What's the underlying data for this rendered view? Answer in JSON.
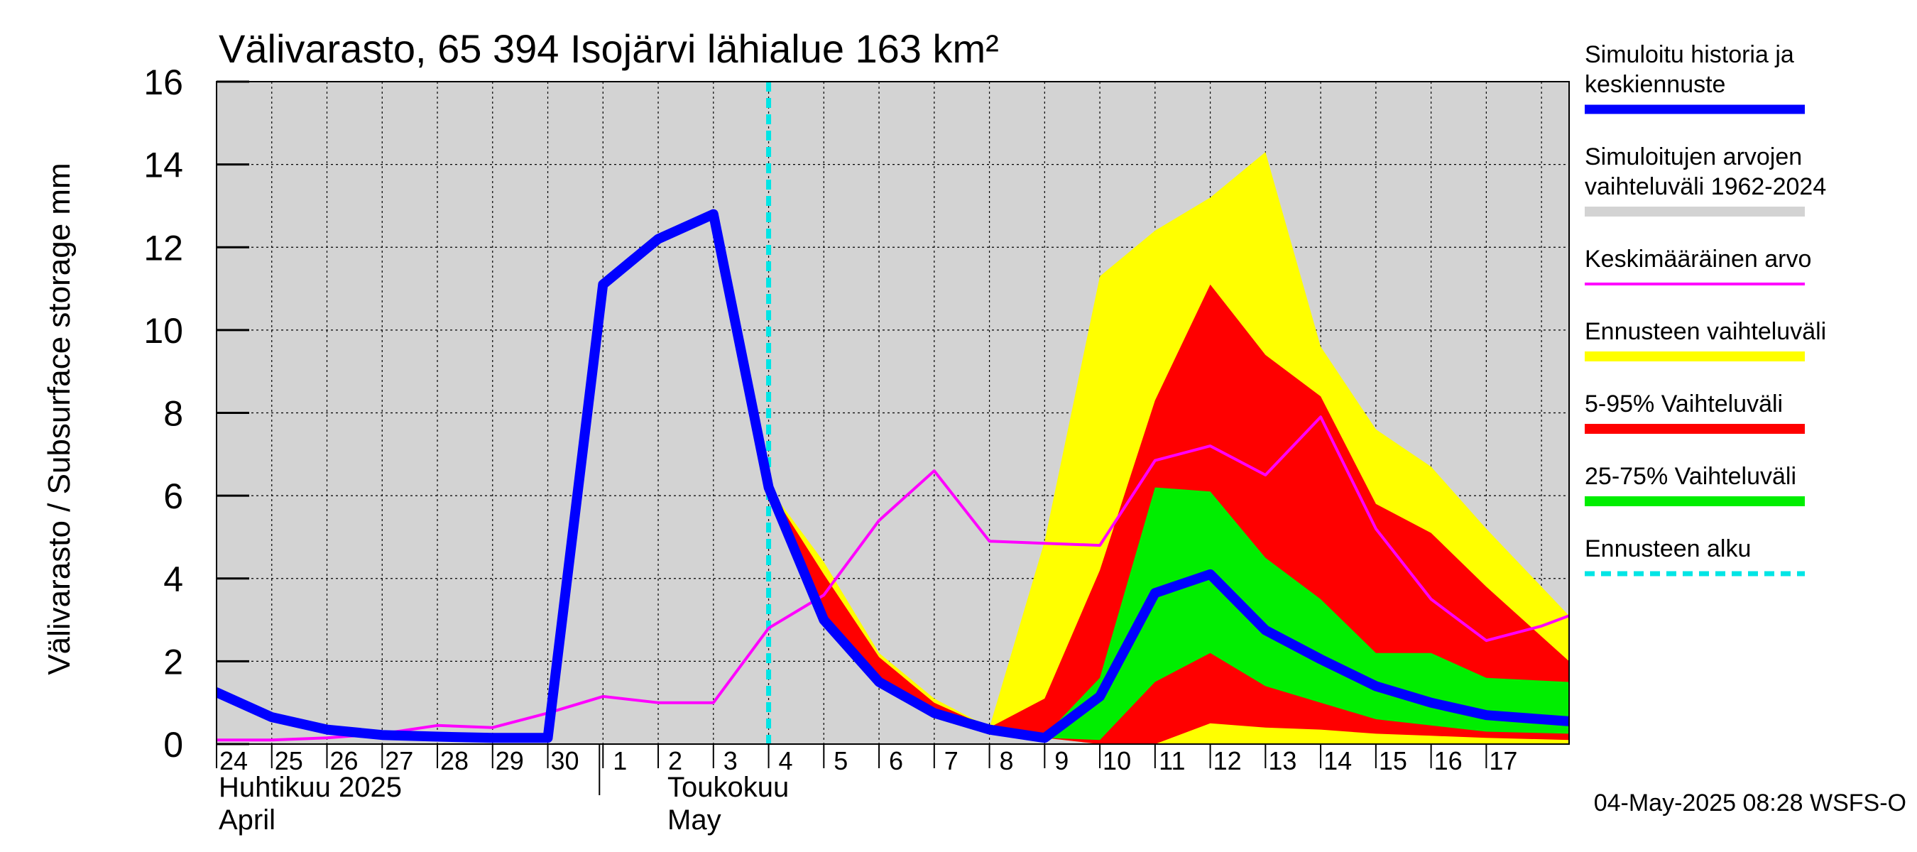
{
  "chart_data": {
    "type": "area",
    "title": "Välivarasto, 65 394 Isojärvi lähialue 163 km²",
    "ylabel": "Välivarasto / Subsurface storage  mm",
    "ylim": [
      0,
      16
    ],
    "yticks": [
      "0",
      "2",
      "4",
      "6",
      "8",
      "10",
      "12",
      "14",
      "16"
    ],
    "xlim": [
      0,
      24.5
    ],
    "x_tick_labels": [
      "24",
      "25",
      "26",
      "27",
      "28",
      "29",
      "30",
      "1",
      "2",
      "3",
      "4",
      "5",
      "6",
      "7",
      "8",
      "9",
      "10",
      "11",
      "12",
      "13",
      "14",
      "15",
      "16",
      "17"
    ],
    "month_labels": {
      "april_fi": "Huhtikuu  2025",
      "april_en": "April",
      "may_fi": "Toukokuu",
      "may_en": "May"
    },
    "forecast_start_x": 10,
    "series": [
      {
        "name": "Simuloitujen arvojen vaihteluväli 1962-2024",
        "kind": "band",
        "color": "#d3d3d3",
        "x": [
          0,
          24.5
        ],
        "lower": [
          0,
          0
        ],
        "upper": [
          16,
          16
        ]
      },
      {
        "name": "Ennusteen vaihteluväli",
        "kind": "band",
        "color": "#ffff00",
        "x": [
          10,
          11,
          12,
          13,
          14,
          15,
          16,
          17,
          18,
          19,
          20,
          21,
          22,
          23,
          24.5
        ],
        "lower": [
          6.2,
          3.0,
          1.5,
          0.7,
          0.35,
          0.15,
          0.0,
          0.0,
          0.0,
          0.0,
          0.0,
          0.0,
          0.0,
          0.0,
          0.0
        ],
        "upper": [
          6.2,
          4.4,
          2.2,
          1.1,
          0.4,
          4.9,
          11.3,
          12.4,
          13.2,
          14.3,
          9.6,
          7.6,
          6.7,
          5.2,
          3.1
        ]
      },
      {
        "name": "5-95% Vaihteluväli",
        "kind": "band",
        "color": "#ff0000",
        "x": [
          10,
          11,
          12,
          13,
          14,
          15,
          16,
          17,
          18,
          19,
          20,
          21,
          22,
          23,
          24.5
        ],
        "lower": [
          6.2,
          3.0,
          1.5,
          0.7,
          0.35,
          0.15,
          0.0,
          0.0,
          0.5,
          0.4,
          0.35,
          0.25,
          0.2,
          0.15,
          0.1
        ],
        "upper": [
          6.2,
          4.1,
          2.1,
          1.0,
          0.4,
          1.1,
          4.2,
          8.3,
          11.1,
          9.4,
          8.4,
          5.8,
          5.1,
          3.8,
          2.0
        ]
      },
      {
        "name": "25-75% Vaihteluväli",
        "kind": "band",
        "color": "#00ee00",
        "x": [
          10,
          11,
          12,
          13,
          14,
          15,
          16,
          17,
          18,
          19,
          20,
          21,
          22,
          23,
          24.5
        ],
        "lower": [
          6.2,
          3.0,
          1.5,
          0.7,
          0.35,
          0.15,
          0.1,
          1.5,
          2.2,
          1.4,
          1.0,
          0.6,
          0.45,
          0.3,
          0.25
        ],
        "upper": [
          6.2,
          3.1,
          1.6,
          0.75,
          0.35,
          0.2,
          1.6,
          6.2,
          6.1,
          4.5,
          3.5,
          2.2,
          2.2,
          1.6,
          1.5
        ]
      },
      {
        "name": "Keskimääräinen arvo",
        "kind": "line",
        "color": "#ff00ff",
        "x": [
          0,
          1,
          2,
          3,
          4,
          5,
          6,
          7,
          8,
          9,
          10,
          11,
          12,
          13,
          14,
          15,
          16,
          17,
          18,
          19,
          20,
          21,
          22,
          23,
          24,
          24.5
        ],
        "values": [
          0.1,
          0.1,
          0.15,
          0.25,
          0.45,
          0.4,
          0.75,
          1.15,
          1.0,
          1.0,
          2.8,
          3.6,
          5.4,
          6.6,
          4.9,
          4.85,
          4.8,
          6.85,
          7.2,
          6.5,
          7.9,
          5.2,
          3.5,
          2.5,
          2.85,
          3.1
        ]
      },
      {
        "name": "Simuloitu historia ja keskiennuste",
        "kind": "line",
        "color": "#0000ff",
        "x": [
          0,
          1,
          2,
          3,
          4,
          5,
          6,
          7,
          8,
          9,
          10,
          11,
          12,
          13,
          14,
          15,
          16,
          17,
          18,
          19,
          20,
          21,
          22,
          23,
          24.5
        ],
        "values": [
          1.25,
          0.65,
          0.35,
          0.22,
          0.18,
          0.15,
          0.15,
          11.1,
          12.2,
          12.8,
          6.2,
          3.0,
          1.5,
          0.75,
          0.35,
          0.15,
          1.15,
          3.65,
          4.1,
          2.75,
          2.05,
          1.4,
          1.0,
          0.7,
          0.55
        ]
      },
      {
        "name": "Ennusteen alku",
        "kind": "vline",
        "color": "#00e5e5",
        "x": 10
      }
    ],
    "legend_position": "right",
    "legend": [
      {
        "label_lines": [
          "Simuloitu historia ja",
          "keskiennuste"
        ],
        "color": "#0000ff",
        "style": "thick"
      },
      {
        "label_lines": [
          "Simuloitujen arvojen",
          "vaihteluväli 1962-2024"
        ],
        "color": "#d3d3d3",
        "style": "band"
      },
      {
        "label_lines": [
          "Keskimääräinen arvo"
        ],
        "color": "#ff00ff",
        "style": "line"
      },
      {
        "label_lines": [
          "Ennusteen vaihteluväli"
        ],
        "color": "#ffff00",
        "style": "band"
      },
      {
        "label_lines": [
          "5-95% Vaihteluväli"
        ],
        "color": "#ff0000",
        "style": "band"
      },
      {
        "label_lines": [
          "25-75% Vaihteluväli"
        ],
        "color": "#00ee00",
        "style": "band"
      },
      {
        "label_lines": [
          "Ennusteen alku"
        ],
        "color": "#00e5e5",
        "style": "dashed"
      }
    ],
    "footer": "04-May-2025 08:28 WSFS-O"
  }
}
